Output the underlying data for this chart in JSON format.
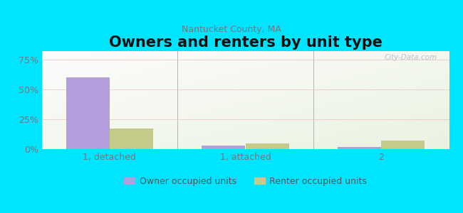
{
  "title": "Owners and renters by unit type",
  "subtitle": "Nantucket County, MA",
  "categories": [
    "1, detached",
    "1, attached",
    "2"
  ],
  "owner_values": [
    60,
    3,
    2
  ],
  "renter_values": [
    17,
    5,
    7
  ],
  "owner_color": "#b39ddb",
  "renter_color": "#c5c98a",
  "background_color": "#00e5ff",
  "yticks": [
    0,
    25,
    50,
    75
  ],
  "ylim": [
    0,
    82
  ],
  "bar_width": 0.32,
  "title_fontsize": 15,
  "subtitle_fontsize": 9,
  "tick_fontsize": 9,
  "legend_fontsize": 9,
  "watermark": "City-Data.com"
}
